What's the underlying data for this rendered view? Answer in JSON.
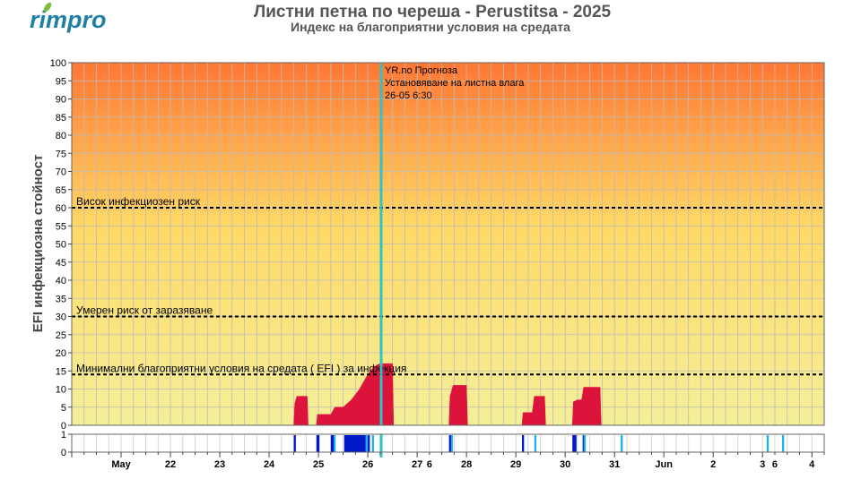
{
  "logo": {
    "text": "rimpro",
    "color": "#1f7fa5",
    "leaf_color": "#7cbf3a"
  },
  "chart_data": {
    "type": "area",
    "title": "Листни петна по череша - Perustitsa - 2025",
    "subtitle": "Индекс на благоприятни условия на средата",
    "ylabel": "EFI инфекциозна стойност",
    "xlabel": "",
    "ylim": [
      0,
      100
    ],
    "yticks": [
      0,
      5,
      10,
      15,
      20,
      25,
      30,
      35,
      40,
      45,
      50,
      55,
      60,
      65,
      70,
      75,
      80,
      85,
      90,
      95,
      100
    ],
    "xlim": [
      "2025-05-20T00:00",
      "2025-06-04T06:00"
    ],
    "xticks": [
      {
        "label": "May",
        "date": "2025-05-21T00:00"
      },
      {
        "label": "22",
        "date": "2025-05-22T00:00"
      },
      {
        "label": "23",
        "date": "2025-05-23T00:00"
      },
      {
        "label": "24",
        "date": "2025-05-24T00:00"
      },
      {
        "label": "25",
        "date": "2025-05-25T00:00"
      },
      {
        "label": "26",
        "date": "2025-05-26T00:00"
      },
      {
        "label": "27",
        "date": "2025-05-27T00:00"
      },
      {
        "label": "6",
        "date": "2025-05-27T06:00"
      },
      {
        "label": "28",
        "date": "2025-05-28T00:00"
      },
      {
        "label": "29",
        "date": "2025-05-29T00:00"
      },
      {
        "label": "30",
        "date": "2025-05-30T00:00"
      },
      {
        "label": "31",
        "date": "2025-05-31T00:00"
      },
      {
        "label": "Jun",
        "date": "2025-06-01T00:00"
      },
      {
        "label": "2",
        "date": "2025-06-02T00:00"
      },
      {
        "label": "3",
        "date": "2025-06-03T00:00"
      },
      {
        "label": "6",
        "date": "2025-06-03T06:00"
      },
      {
        "label": "4",
        "date": "2025-06-04T00:00"
      }
    ],
    "thresholds": [
      {
        "label": "Висок инфекциозен риск",
        "value": 60
      },
      {
        "label": "Умерен риск от заразяване",
        "value": 30
      },
      {
        "label": "Минимални благоприятни условия на средата ( EFI ) за инфекция",
        "value": 14
      }
    ],
    "forecast_marker": {
      "date": "2025-05-26T06:30",
      "lines": [
        "YR.no Прогноза",
        "Установяване на листна влага",
        "26-05 6:30"
      ],
      "color": "#2ec4c4"
    },
    "series": [
      {
        "color": "#dc143c",
        "segments": [
          [
            [
              "2025-05-24T12:00",
              0
            ],
            [
              "2025-05-24T12:30",
              6
            ],
            [
              "2025-05-24T13:30",
              8
            ],
            [
              "2025-05-24T18:30",
              8
            ],
            [
              "2025-05-24T19:00",
              0
            ]
          ],
          [
            [
              "2025-05-24T23:00",
              0
            ],
            [
              "2025-05-24T23:30",
              3
            ],
            [
              "2025-05-25T06:00",
              3
            ],
            [
              "2025-05-25T07:00",
              4
            ],
            [
              "2025-05-25T08:00",
              5
            ],
            [
              "2025-05-25T12:00",
              5
            ],
            [
              "2025-05-25T14:00",
              6
            ],
            [
              "2025-05-25T16:00",
              7
            ],
            [
              "2025-05-25T18:00",
              8.5
            ],
            [
              "2025-05-25T20:00",
              10
            ],
            [
              "2025-05-25T22:00",
              12
            ],
            [
              "2025-05-26T00:00",
              14
            ],
            [
              "2025-05-26T02:00",
              15.5
            ],
            [
              "2025-05-26T04:00",
              16.5
            ],
            [
              "2025-05-26T06:00",
              17
            ],
            [
              "2025-05-26T12:00",
              17
            ],
            [
              "2025-05-26T12:30",
              0
            ]
          ],
          [
            [
              "2025-05-27T15:30",
              0
            ],
            [
              "2025-05-27T16:00",
              8
            ],
            [
              "2025-05-27T17:30",
              11
            ],
            [
              "2025-05-28T00:00",
              11
            ],
            [
              "2025-05-28T00:30",
              0
            ]
          ],
          [
            [
              "2025-05-29T03:00",
              0
            ],
            [
              "2025-05-29T03:30",
              3.5
            ],
            [
              "2025-05-29T08:00",
              3.5
            ],
            [
              "2025-05-29T09:00",
              8
            ],
            [
              "2025-05-29T14:00",
              8
            ],
            [
              "2025-05-29T14:30",
              0
            ]
          ],
          [
            [
              "2025-05-30T03:30",
              0
            ],
            [
              "2025-05-30T04:00",
              6.5
            ],
            [
              "2025-05-30T06:00",
              7
            ],
            [
              "2025-05-30T08:00",
              7
            ],
            [
              "2025-05-30T09:00",
              10.5
            ],
            [
              "2025-05-30T17:00",
              10.5
            ],
            [
              "2025-05-30T17:30",
              0
            ]
          ]
        ]
      }
    ],
    "wetness_panel": {
      "yticks": [
        0,
        1
      ],
      "colors": {
        "dark": "#0018c8",
        "light": "#18b4ec"
      },
      "bars": [
        {
          "start": "2025-05-24T12:00",
          "end": "2025-05-24T13:00",
          "shade": "dark"
        },
        {
          "start": "2025-05-24T23:00",
          "end": "2025-05-25T00:30",
          "shade": "dark"
        },
        {
          "start": "2025-05-25T06:00",
          "end": "2025-05-25T07:30",
          "shade": "dark"
        },
        {
          "start": "2025-05-25T07:30",
          "end": "2025-05-25T08:00",
          "shade": "light"
        },
        {
          "start": "2025-05-25T12:30",
          "end": "2025-05-25T23:00",
          "shade": "dark"
        },
        {
          "start": "2025-05-25T23:00",
          "end": "2025-05-26T00:00",
          "shade": "light"
        },
        {
          "start": "2025-05-26T00:00",
          "end": "2025-05-26T01:00",
          "shade": "dark"
        },
        {
          "start": "2025-05-26T02:00",
          "end": "2025-05-26T03:00",
          "shade": "light"
        },
        {
          "start": "2025-05-27T15:30",
          "end": "2025-05-27T16:30",
          "shade": "dark"
        },
        {
          "start": "2025-05-27T16:30",
          "end": "2025-05-27T17:00",
          "shade": "light"
        },
        {
          "start": "2025-05-29T03:00",
          "end": "2025-05-29T04:00",
          "shade": "dark"
        },
        {
          "start": "2025-05-29T09:00",
          "end": "2025-05-29T10:00",
          "shade": "light"
        },
        {
          "start": "2025-05-30T03:30",
          "end": "2025-05-30T05:30",
          "shade": "dark"
        },
        {
          "start": "2025-05-30T08:30",
          "end": "2025-05-30T09:00",
          "shade": "dark"
        },
        {
          "start": "2025-05-30T09:00",
          "end": "2025-05-30T10:00",
          "shade": "light"
        },
        {
          "start": "2025-05-31T03:00",
          "end": "2025-05-31T04:00",
          "shade": "light"
        },
        {
          "start": "2025-06-03T02:00",
          "end": "2025-06-03T03:00",
          "shade": "light"
        },
        {
          "start": "2025-06-03T09:30",
          "end": "2025-06-03T10:30",
          "shade": "light"
        }
      ]
    },
    "background_gradient": [
      "#ff7733",
      "#ffd966",
      "#f5ef9a"
    ],
    "grid": true
  }
}
